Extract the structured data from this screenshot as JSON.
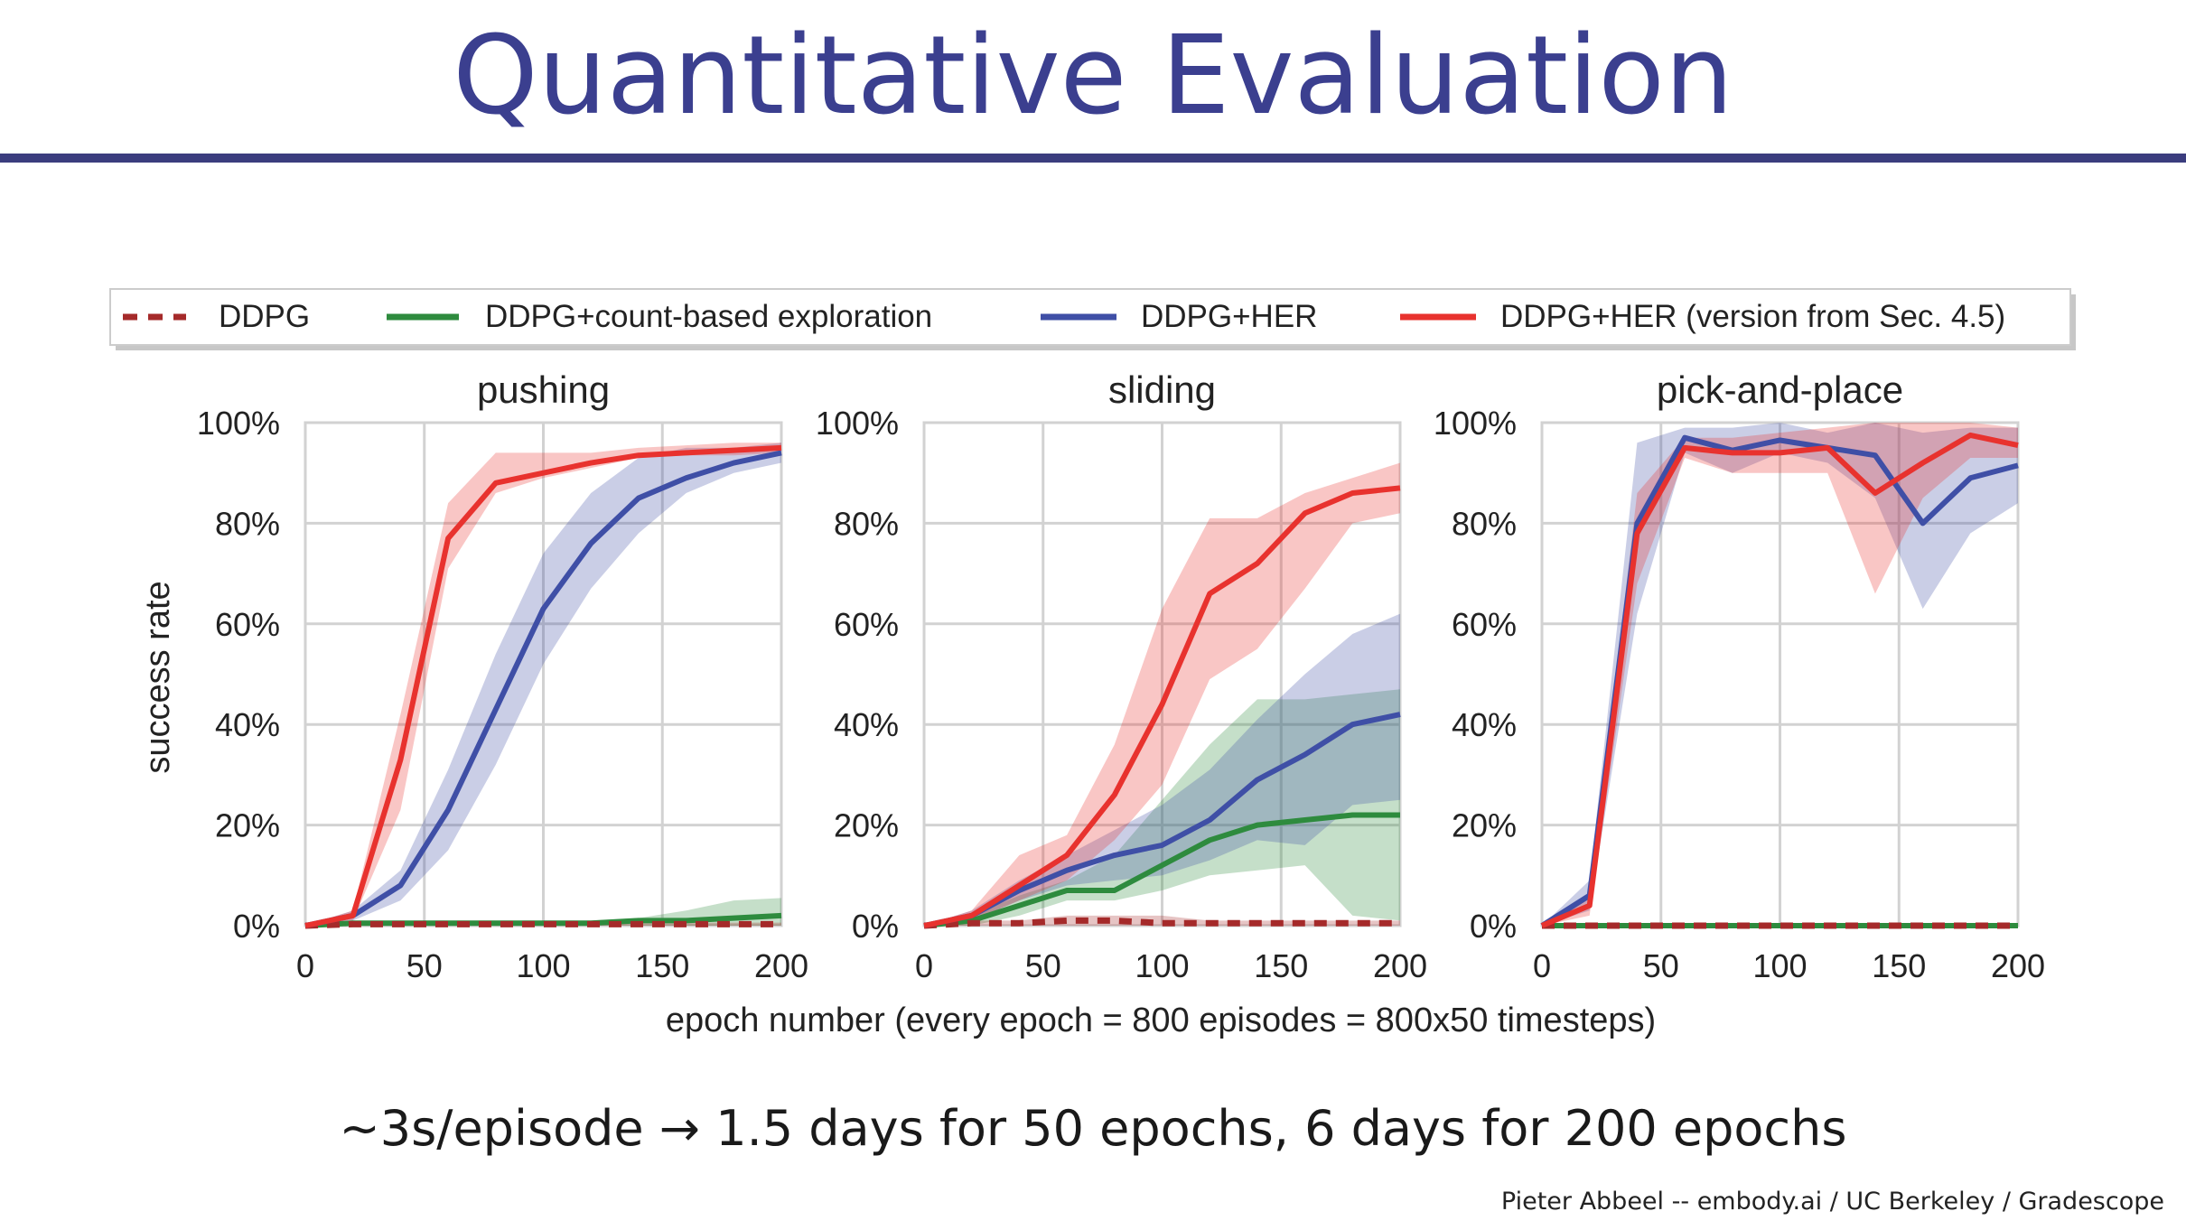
{
  "slide": {
    "title": "Quantitative Evaluation",
    "caption": "~3s/episode → 1.5 days for 50 epochs, 6 days for 200 epochs",
    "footer": "Pieter Abbeel -- embody.ai / UC Berkeley / Gradescope",
    "title_color": "#3b3f8f",
    "rule_color": "#3b3d7e"
  },
  "chart_data": {
    "type": "line",
    "xlabel": "epoch number (every epoch = 800 episodes = 800x50 timesteps)",
    "ylabel": "success rate",
    "xlim": [
      0,
      200
    ],
    "ylim": [
      0,
      100
    ],
    "x_ticks": [
      "0",
      "50",
      "100",
      "150",
      "200"
    ],
    "y_ticks": [
      "0%",
      "20%",
      "40%",
      "60%",
      "80%",
      "100%"
    ],
    "grid": true,
    "legend": [
      {
        "name": "DDPG",
        "color": "#a52a2a",
        "dash": true
      },
      {
        "name": "DDPG+count-based exploration",
        "color": "#2e8b3e",
        "dash": false
      },
      {
        "name": "DDPG+HER",
        "color": "#3f4fa6",
        "dash": false
      },
      {
        "name": "DDPG+HER (version from Sec. 4.5)",
        "color": "#e8322e",
        "dash": false
      }
    ],
    "x": [
      0,
      20,
      40,
      60,
      80,
      100,
      120,
      140,
      160,
      180,
      200
    ],
    "panels": [
      {
        "title": "pushing",
        "series": [
          {
            "name": "DDPG+count-based exploration",
            "color": "#2e8b3e",
            "dash": false,
            "values": [
              0,
              0.5,
              0.5,
              0.5,
              0.5,
              0.5,
              0.5,
              1,
              1,
              1.5,
              2
            ],
            "lower": [
              0,
              0,
              0,
              0,
              0,
              0,
              0,
              0,
              0,
              0,
              0
            ],
            "upper": [
              0,
              1,
              1,
              1,
              1,
              1,
              1,
              1.5,
              3,
              5,
              5.5
            ]
          },
          {
            "name": "DDPG",
            "color": "#a52a2a",
            "dash": true,
            "values": [
              0,
              0.3,
              0.3,
              0.3,
              0.3,
              0.3,
              0.3,
              0.3,
              0.3,
              0.3,
              0.3
            ],
            "lower": [
              0,
              0,
              0,
              0,
              0,
              0,
              0,
              0,
              0,
              0,
              0
            ],
            "upper": [
              0,
              0.6,
              0.6,
              0.6,
              0.6,
              0.6,
              0.6,
              0.6,
              0.6,
              0.6,
              0.6
            ]
          },
          {
            "name": "DDPG+HER",
            "color": "#3f4fa6",
            "dash": false,
            "values": [
              0,
              2,
              8,
              23,
              43,
              63,
              76,
              85,
              89,
              92,
              94
            ],
            "lower": [
              0,
              1,
              5,
              15,
              32,
              52,
              67,
              78,
              86,
              90,
              92
            ],
            "upper": [
              0,
              3,
              11,
              31,
              54,
              74,
              86,
              93,
              95,
              95,
              96
            ]
          },
          {
            "name": "DDPG+HER (version from Sec. 4.5)",
            "color": "#e8322e",
            "dash": false,
            "values": [
              0,
              2,
              33,
              77,
              88,
              90,
              92,
              93.5,
              94,
              94.5,
              95
            ],
            "lower": [
              0,
              1,
              23,
              71,
              86,
              89,
              91,
              93,
              93.5,
              93.5,
              94
            ],
            "upper": [
              0,
              3,
              42,
              84,
              94,
              94,
              94,
              95,
              95.5,
              96,
              96
            ]
          }
        ]
      },
      {
        "title": "sliding",
        "series": [
          {
            "name": "DDPG+count-based exploration",
            "color": "#2e8b3e",
            "dash": false,
            "values": [
              0,
              1,
              4,
              7,
              7,
              12,
              17,
              20,
              21,
              22,
              22
            ],
            "lower": [
              0,
              0,
              2,
              5,
              5,
              7,
              10,
              11,
              12,
              2,
              1
            ],
            "upper": [
              0,
              2,
              6,
              9,
              14,
              25,
              36,
              45,
              45,
              46,
              47
            ]
          },
          {
            "name": "DDPG",
            "color": "#a52a2a",
            "dash": true,
            "values": [
              0,
              0.5,
              0.5,
              1,
              1,
              0.5,
              0.5,
              0.5,
              0.5,
              0.5,
              0.5
            ],
            "lower": [
              0,
              0,
              0,
              0,
              0,
              0,
              0,
              0,
              0,
              0,
              0
            ],
            "upper": [
              0,
              1,
              1,
              2,
              2,
              2,
              1,
              1,
              1,
              1,
              1
            ]
          },
          {
            "name": "DDPG+HER",
            "color": "#3f4fa6",
            "dash": false,
            "values": [
              0,
              2,
              7,
              11,
              14,
              16,
              21,
              29,
              34,
              40,
              42
            ],
            "lower": [
              0,
              1,
              5,
              8,
              9,
              10,
              13,
              17,
              16,
              24,
              25
            ],
            "upper": [
              0,
              3,
              9,
              14,
              19,
              24,
              31,
              41,
              50,
              58,
              62
            ]
          },
          {
            "name": "DDPG+HER (version from Sec. 4.5)",
            "color": "#e8322e",
            "dash": false,
            "values": [
              0,
              2,
              8,
              14,
              26,
              44,
              66,
              72,
              82,
              86,
              87
            ],
            "lower": [
              0,
              1,
              5,
              9,
              17,
              28,
              49,
              55,
              67,
              80,
              82
            ],
            "upper": [
              0,
              3,
              14,
              18,
              36,
              63,
              81,
              81,
              86,
              89,
              92
            ]
          }
        ]
      },
      {
        "title": "pick-and-place",
        "series": [
          {
            "name": "DDPG+count-based exploration",
            "color": "#2e8b3e",
            "dash": false,
            "values": [
              0,
              0,
              0,
              0,
              0,
              0,
              0,
              0,
              0,
              0,
              0
            ],
            "lower": [
              0,
              0,
              0,
              0,
              0,
              0,
              0,
              0,
              0,
              0,
              0
            ],
            "upper": [
              0,
              0.5,
              0.5,
              0.5,
              0.5,
              0.5,
              0.5,
              0.5,
              0.5,
              0.5,
              0.5
            ]
          },
          {
            "name": "DDPG",
            "color": "#a52a2a",
            "dash": true,
            "values": [
              0,
              0,
              0,
              0,
              0,
              0,
              0,
              0,
              0,
              0,
              0
            ],
            "lower": [
              0,
              0,
              0,
              0,
              0,
              0,
              0,
              0,
              0,
              0,
              0
            ],
            "upper": [
              0,
              0.3,
              0.3,
              0.3,
              0.3,
              0.3,
              0.3,
              0.3,
              0.3,
              0.3,
              0.3
            ]
          },
          {
            "name": "DDPG+HER",
            "color": "#3f4fa6",
            "dash": false,
            "values": [
              0,
              6,
              80,
              97,
              94.5,
              96.5,
              95,
              93.5,
              80,
              89,
              91.5
            ],
            "lower": [
              0,
              3,
              62,
              94,
              90,
              94,
              92,
              85,
              63,
              78,
              84
            ],
            "upper": [
              0,
              9,
              96,
              99,
              99,
              100,
              98,
              100,
              98,
              99,
              99
            ]
          },
          {
            "name": "DDPG+HER (version from Sec. 4.5)",
            "color": "#e8322e",
            "dash": false,
            "values": [
              0,
              4,
              78,
              95,
              94,
              94,
              95,
              86,
              92,
              97.5,
              95.5
            ],
            "lower": [
              0,
              2,
              68,
              93,
              90,
              90,
              90,
              66,
              85,
              93,
              93
            ],
            "upper": [
              0,
              6,
              86,
              97,
              97,
              98,
              99,
              100,
              100,
              100,
              99
            ]
          }
        ]
      }
    ]
  }
}
